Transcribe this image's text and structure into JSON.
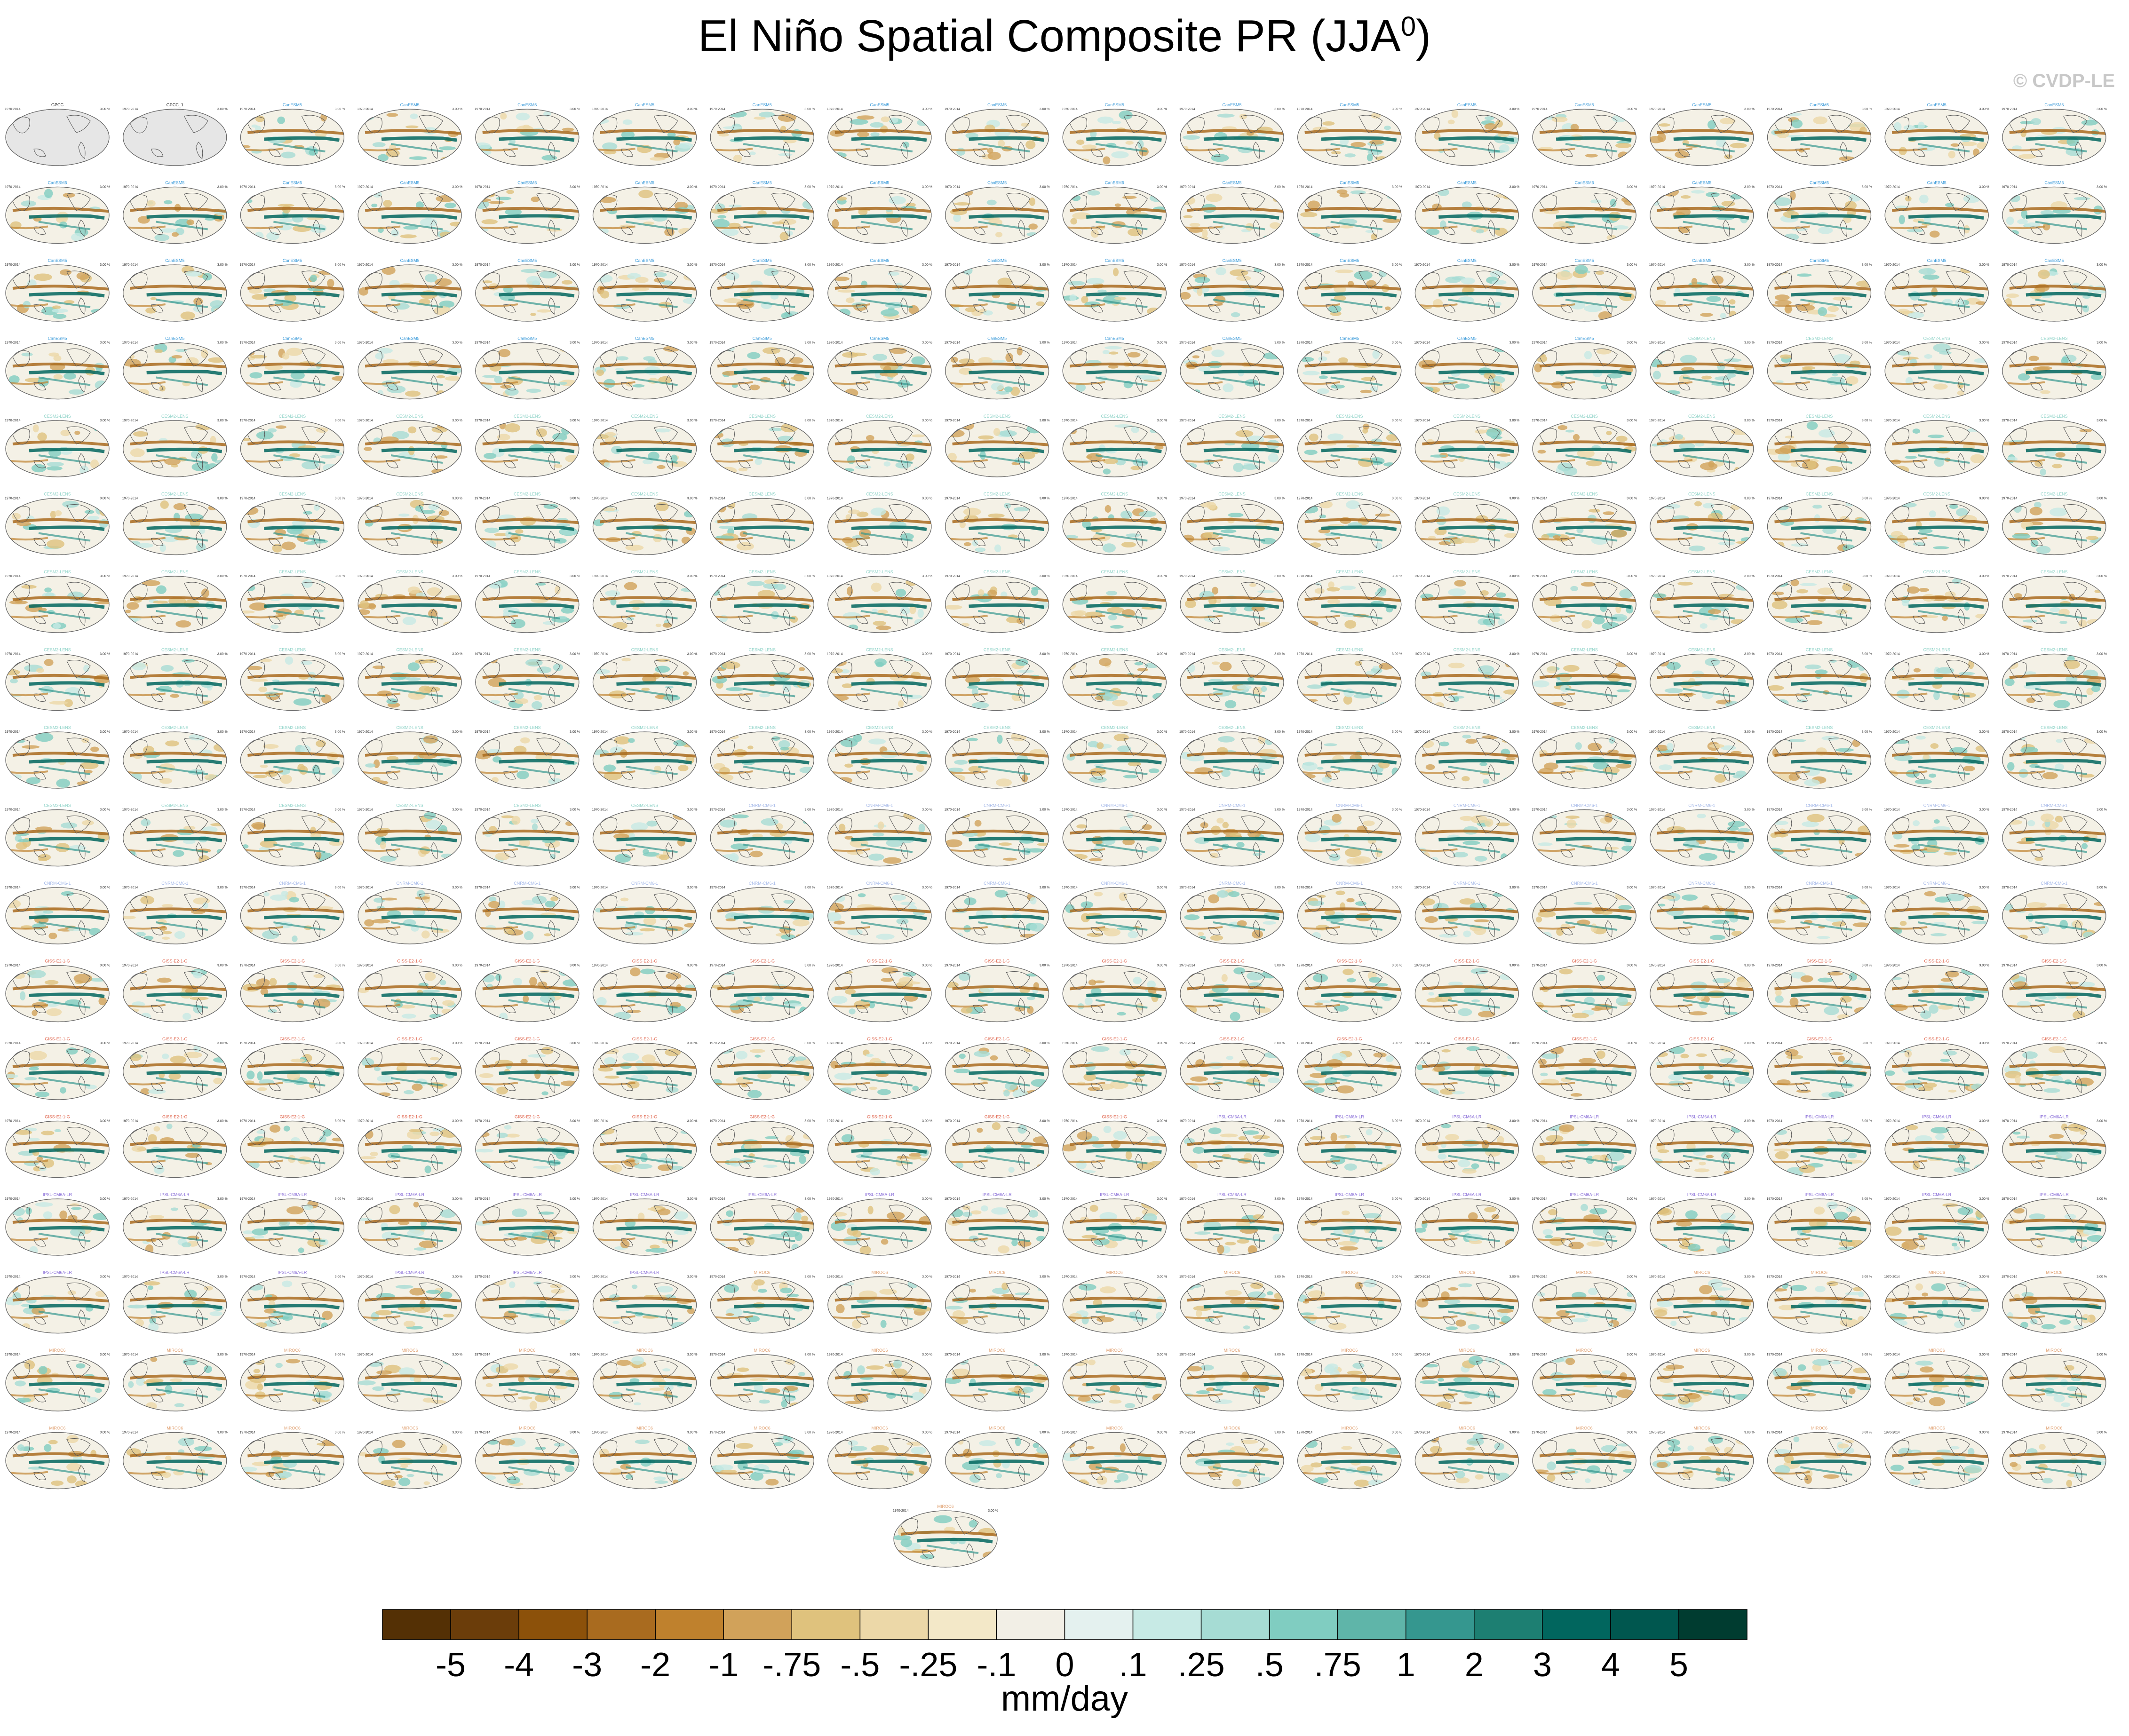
{
  "title": "El Niño Spatial Composite PR (JJA",
  "title_superscript": "0",
  "title_close": ")",
  "watermark": "© CVDP-LE",
  "chart_data": {
    "type": "heatmap",
    "description_type": "panel-grid-of-maps",
    "title": "El Niño Spatial Composite PR (JJA0)",
    "panel_grid": {
      "rows": 18,
      "columns": 18,
      "extra_panels_below": 1
    },
    "panel_groups": [
      {
        "name": "GPCC",
        "color": "#000000",
        "count": 1,
        "style": "observation"
      },
      {
        "name": "GPCC_1",
        "color": "#000000",
        "count": 1,
        "style": "observation"
      },
      {
        "name": "CanESM5",
        "color": "#3a9ad9",
        "count": 66,
        "style": "model"
      },
      {
        "name": "CESM2-LENS",
        "color": "#8fd3c8",
        "count": 100,
        "style": "model"
      },
      {
        "name": "CNRM-CM6-1",
        "color": "#a4b8e8",
        "count": 30,
        "style": "model"
      },
      {
        "name": "GISS-E2-1-G",
        "color": "#e0644c",
        "count": 46,
        "style": "model"
      },
      {
        "name": "IPSL-CM6A-LR",
        "color": "#8a6fd8",
        "count": 32,
        "style": "model"
      },
      {
        "name": "MIROC6",
        "color": "#e0a070",
        "count": 49,
        "style": "model"
      }
    ],
    "panel_left_label": "1970-2014",
    "panel_right_label": "3.00 %",
    "colorbar": {
      "units": "mm/day",
      "tick_labels": [
        "-5",
        "-4",
        "-3",
        "-2",
        "-1",
        "-.75",
        "-.5",
        "-.25",
        "-.1",
        "0",
        ".1",
        ".25",
        ".5",
        ".75",
        "1",
        "2",
        "3",
        "4",
        "5"
      ],
      "colors": [
        "#543005",
        "#6b3d0a",
        "#8c510a",
        "#a96b1f",
        "#bf812d",
        "#d1a25a",
        "#dfc27d",
        "#ecd8a8",
        "#f3e8c8",
        "#f2efe6",
        "#e4f1ef",
        "#c7eae5",
        "#a6dcd4",
        "#80cdc1",
        "#5fb5a9",
        "#35978f",
        "#1d7f72",
        "#01665e",
        "#00574f",
        "#003c30"
      ]
    }
  }
}
